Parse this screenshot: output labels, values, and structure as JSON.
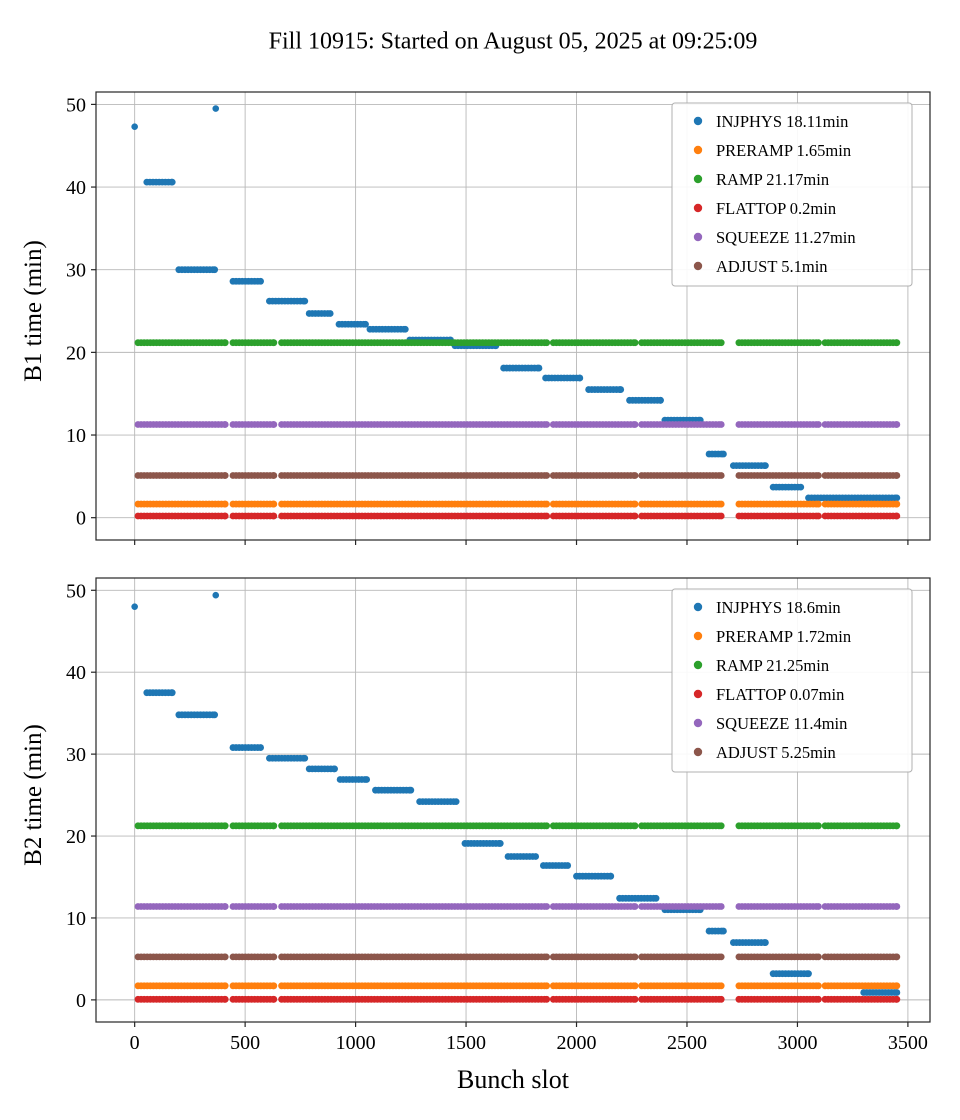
{
  "figure": {
    "title": "Fill 10915: Started on August 05, 2025 at 09:25:09",
    "xlabel": "Bunch slot"
  },
  "chart_data": [
    {
      "type": "scatter",
      "ylabel": "B1 time (min)",
      "xlim": [
        -175,
        3600
      ],
      "ylim": [
        -2.7,
        51.5
      ],
      "xticks": [
        0,
        500,
        1000,
        1500,
        2000,
        2500,
        3000,
        3500
      ],
      "yticks": [
        0,
        10,
        20,
        30,
        40,
        50
      ],
      "grid": true,
      "legend_position": "upper right",
      "trains": [
        [
          15,
          410
        ],
        [
          445,
          630
        ],
        [
          665,
          1865
        ],
        [
          1895,
          2265
        ],
        [
          2295,
          2655
        ],
        [
          2735,
          3095
        ],
        [
          3125,
          3450
        ]
      ],
      "series": [
        {
          "name": "INJPHYS",
          "label": "INJPHYS 18.11min",
          "color": "#1f77b4",
          "type": "steps",
          "steps": [
            [
              0,
              0,
              47.3
            ],
            [
              55,
              170,
              40.6
            ],
            [
              200,
              362,
              30.0
            ],
            [
              367,
              367,
              49.5
            ],
            [
              445,
              570,
              28.6
            ],
            [
              610,
              770,
              26.2
            ],
            [
              790,
              885,
              24.7
            ],
            [
              925,
              1045,
              23.4
            ],
            [
              1065,
              1225,
              22.8
            ],
            [
              1245,
              1430,
              21.5
            ],
            [
              1450,
              1635,
              20.8
            ],
            [
              1670,
              1830,
              18.1
            ],
            [
              1860,
              2015,
              16.9
            ],
            [
              2055,
              2200,
              15.5
            ],
            [
              2240,
              2380,
              14.2
            ],
            [
              2400,
              2560,
              11.8
            ],
            [
              2600,
              2665,
              7.7
            ],
            [
              2710,
              2855,
              6.3
            ],
            [
              2890,
              3015,
              3.7
            ],
            [
              3050,
              3450,
              2.4
            ]
          ]
        },
        {
          "name": "PRERAMP",
          "label": "PRERAMP 1.65min",
          "color": "#ff7f0e",
          "type": "band",
          "y": 1.65
        },
        {
          "name": "RAMP",
          "label": "RAMP 21.17min",
          "color": "#2ca02c",
          "type": "band",
          "y": 21.17
        },
        {
          "name": "FLATTOP",
          "label": "FLATTOP 0.2min",
          "color": "#d62728",
          "type": "band",
          "y": 0.2
        },
        {
          "name": "SQUEEZE",
          "label": "SQUEEZE 11.27min",
          "color": "#9467bd",
          "type": "band",
          "y": 11.27
        },
        {
          "name": "ADJUST",
          "label": "ADJUST 5.1min",
          "color": "#8c564b",
          "type": "band",
          "y": 5.1
        }
      ]
    },
    {
      "type": "scatter",
      "ylabel": "B2 time (min)",
      "xlim": [
        -175,
        3600
      ],
      "ylim": [
        -2.7,
        51.5
      ],
      "xticks": [
        0,
        500,
        1000,
        1500,
        2000,
        2500,
        3000,
        3500
      ],
      "yticks": [
        0,
        10,
        20,
        30,
        40,
        50
      ],
      "grid": true,
      "legend_position": "upper right",
      "trains": [
        [
          15,
          410
        ],
        [
          445,
          630
        ],
        [
          665,
          1865
        ],
        [
          1895,
          2265
        ],
        [
          2295,
          2655
        ],
        [
          2735,
          3095
        ],
        [
          3125,
          3450
        ]
      ],
      "series": [
        {
          "name": "INJPHYS",
          "label": "INJPHYS 18.6min",
          "color": "#1f77b4",
          "type": "steps",
          "steps": [
            [
              0,
              0,
              48.0
            ],
            [
              55,
              170,
              37.5
            ],
            [
              200,
              362,
              34.8
            ],
            [
              367,
              367,
              49.4
            ],
            [
              445,
              570,
              30.8
            ],
            [
              610,
              770,
              29.5
            ],
            [
              790,
              905,
              28.2
            ],
            [
              930,
              1050,
              26.9
            ],
            [
              1090,
              1250,
              25.6
            ],
            [
              1290,
              1455,
              24.2
            ],
            [
              1495,
              1655,
              19.1
            ],
            [
              1690,
              1815,
              17.5
            ],
            [
              1850,
              1960,
              16.4
            ],
            [
              2000,
              2155,
              15.1
            ],
            [
              2195,
              2360,
              12.4
            ],
            [
              2400,
              2560,
              11.0
            ],
            [
              2600,
              2665,
              8.4
            ],
            [
              2710,
              2855,
              7.0
            ],
            [
              2890,
              3050,
              3.2
            ],
            [
              3300,
              3450,
              0.9
            ]
          ]
        },
        {
          "name": "PRERAMP",
          "label": "PRERAMP 1.72min",
          "color": "#ff7f0e",
          "type": "band",
          "y": 1.72
        },
        {
          "name": "RAMP",
          "label": "RAMP 21.25min",
          "color": "#2ca02c",
          "type": "band",
          "y": 21.25
        },
        {
          "name": "FLATTOP",
          "label": "FLATTOP 0.07min",
          "color": "#d62728",
          "type": "band",
          "y": 0.07
        },
        {
          "name": "SQUEEZE",
          "label": "SQUEEZE 11.4min",
          "color": "#9467bd",
          "type": "band",
          "y": 11.4
        },
        {
          "name": "ADJUST",
          "label": "ADJUST 5.25min",
          "color": "#8c564b",
          "type": "band",
          "y": 5.25
        }
      ]
    }
  ]
}
